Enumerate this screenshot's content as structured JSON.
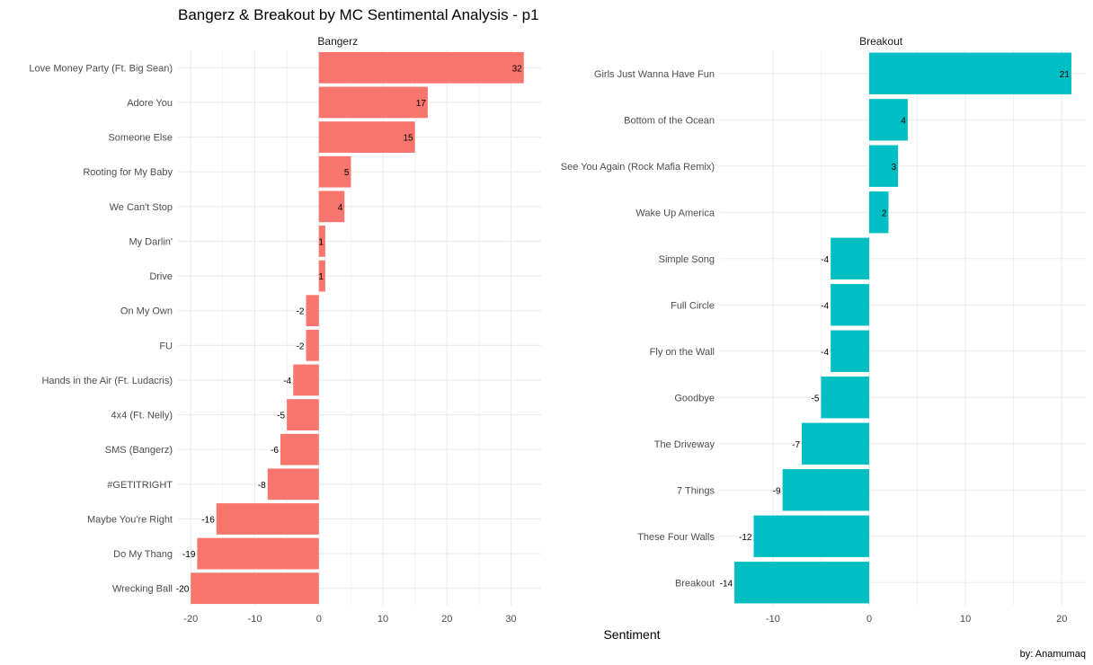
{
  "title": "Bangerz & Breakout by MC Sentimental Analysis - p1",
  "xlabel": "Sentiment",
  "caption": "by: Anamumaq",
  "colors": {
    "bangerz": "#F8766D",
    "breakout": "#00BFC4",
    "grid": "#ebebeb"
  },
  "chart_data": [
    {
      "type": "bar",
      "orientation": "horizontal",
      "panel": "Bangerz",
      "color": "#F8766D",
      "xlim": [
        -22,
        34.7
      ],
      "ticks": [
        -20,
        -10,
        0,
        10,
        20,
        30
      ],
      "categories": [
        "Love Money Party (Ft. Big Sean)",
        "Adore You",
        "Someone Else",
        "Rooting for My Baby",
        "We Can't Stop",
        "My Darlin'",
        "Drive",
        "On My Own",
        "FU",
        "Hands in the Air (Ft. Ludacris)",
        "4x4 (Ft. Nelly)",
        "SMS (Bangerz)",
        "#GETITRIGHT",
        "Maybe You're Right",
        "Do My Thang",
        "Wrecking Ball"
      ],
      "values": [
        32,
        17,
        15,
        5,
        4,
        1,
        1,
        -2,
        -2,
        -4,
        -5,
        -6,
        -8,
        -16,
        -19,
        -20
      ]
    },
    {
      "type": "bar",
      "orientation": "horizontal",
      "panel": "Breakout",
      "color": "#00BFC4",
      "xlim": [
        -15.5,
        22.5
      ],
      "ticks": [
        -10,
        0,
        10,
        20
      ],
      "categories": [
        "Girls Just Wanna Have Fun",
        "Bottom of the Ocean",
        "See You Again (Rock Mafia Remix)",
        "Wake Up America",
        "Simple Song",
        "Full Circle",
        "Fly on the Wall",
        "Goodbye",
        "The Driveway",
        "7 Things",
        "These Four Walls",
        "Breakout"
      ],
      "values": [
        21,
        4,
        3,
        2,
        -4,
        -4,
        -4,
        -5,
        -7,
        -9,
        -12,
        -14
      ]
    }
  ]
}
